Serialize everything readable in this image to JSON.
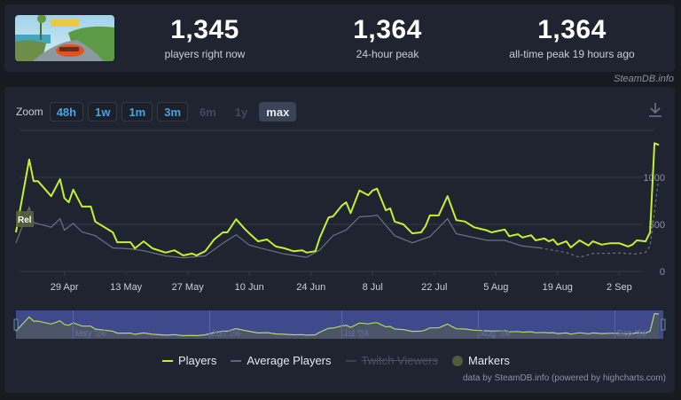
{
  "header": {
    "game_image_alt": "The Crew Motorfest",
    "stats": [
      {
        "value": "1,345",
        "label": "players right now"
      },
      {
        "value": "1,364",
        "label": "24-hour peak"
      },
      {
        "value": "1,364",
        "label": "all-time peak 19 hours ago"
      }
    ],
    "watermark": "SteamDB.info"
  },
  "toolbar": {
    "zoom_label": "Zoom",
    "zoom_buttons": [
      {
        "label": "48h",
        "state": "enabled"
      },
      {
        "label": "1w",
        "state": "enabled"
      },
      {
        "label": "1m",
        "state": "enabled"
      },
      {
        "label": "3m",
        "state": "enabled"
      },
      {
        "label": "6m",
        "state": "disabled"
      },
      {
        "label": "1y",
        "state": "disabled"
      },
      {
        "label": "max",
        "state": "active"
      }
    ],
    "download_icon": "download-icon"
  },
  "legend": {
    "items": [
      {
        "label": "Players",
        "color": "#c5f230",
        "visible": true
      },
      {
        "label": "Average Players",
        "color": "#5f6673",
        "visible": true
      },
      {
        "label": "Twitch Viewers",
        "color": "#3a414d",
        "visible": false
      },
      {
        "label": "Markers",
        "color": "#4f5b3a",
        "visible": true
      }
    ]
  },
  "credits": "data by SteamDB.info (powered by highcharts.com)",
  "colors": {
    "players": "#c5f230",
    "average": "#6b7280",
    "grid": "#333b49",
    "navigator_bg": "#3e4a8c",
    "navigator_fill": "#4c5468",
    "marker_bg": "#59633c"
  },
  "chart_data": {
    "type": "line",
    "title": "",
    "xlabel": "",
    "ylabel": "",
    "ylim": [
      0,
      1400
    ],
    "yticks": [
      0,
      500,
      1000
    ],
    "x_tick_labels": [
      "29 Apr",
      "13 May",
      "27 May",
      "10 Jun",
      "24 Jun",
      "8 Jul",
      "22 Jul",
      "5 Aug",
      "19 Aug",
      "2 Sep"
    ],
    "navigator_labels": [
      "May '24",
      "Jun '24",
      "Jul '24",
      "Aug '24",
      "Sep '24"
    ],
    "annotations": [
      {
        "label": "Rel",
        "x_date": "2024-04-18"
      }
    ],
    "legend_position": "bottom",
    "grid": true,
    "x_start": "2024-04-18",
    "x_end": "2024-09-12",
    "series": [
      {
        "name": "Players",
        "color": "#c5f230",
        "points": [
          [
            "2024-04-18",
            415
          ],
          [
            "2024-04-21",
            1190
          ],
          [
            "2024-04-22",
            960
          ],
          [
            "2024-04-23",
            960
          ],
          [
            "2024-04-26",
            800
          ],
          [
            "2024-04-28",
            980
          ],
          [
            "2024-04-29",
            780
          ],
          [
            "2024-04-30",
            735
          ],
          [
            "2024-05-01",
            870
          ],
          [
            "2024-05-03",
            690
          ],
          [
            "2024-05-05",
            690
          ],
          [
            "2024-05-06",
            530
          ],
          [
            "2024-05-10",
            415
          ],
          [
            "2024-05-11",
            310
          ],
          [
            "2024-05-14",
            310
          ],
          [
            "2024-05-15",
            245
          ],
          [
            "2024-05-17",
            320
          ],
          [
            "2024-05-19",
            245
          ],
          [
            "2024-05-22",
            200
          ],
          [
            "2024-05-24",
            225
          ],
          [
            "2024-05-26",
            170
          ],
          [
            "2024-05-28",
            190
          ],
          [
            "2024-05-29",
            170
          ],
          [
            "2024-05-31",
            215
          ],
          [
            "2024-06-02",
            340
          ],
          [
            "2024-06-04",
            415
          ],
          [
            "2024-06-05",
            415
          ],
          [
            "2024-06-07",
            555
          ],
          [
            "2024-06-09",
            450
          ],
          [
            "2024-06-10",
            405
          ],
          [
            "2024-06-12",
            320
          ],
          [
            "2024-06-14",
            340
          ],
          [
            "2024-06-16",
            265
          ],
          [
            "2024-06-18",
            245
          ],
          [
            "2024-06-20",
            215
          ],
          [
            "2024-06-22",
            225
          ],
          [
            "2024-06-23",
            200
          ],
          [
            "2024-06-25",
            215
          ],
          [
            "2024-06-26",
            360
          ],
          [
            "2024-06-28",
            575
          ],
          [
            "2024-06-29",
            585
          ],
          [
            "2024-07-01",
            700
          ],
          [
            "2024-07-02",
            735
          ],
          [
            "2024-07-03",
            620
          ],
          [
            "2024-07-05",
            860
          ],
          [
            "2024-07-07",
            810
          ],
          [
            "2024-07-08",
            860
          ],
          [
            "2024-07-09",
            880
          ],
          [
            "2024-07-11",
            650
          ],
          [
            "2024-07-12",
            670
          ],
          [
            "2024-07-13",
            530
          ],
          [
            "2024-07-15",
            500
          ],
          [
            "2024-07-17",
            405
          ],
          [
            "2024-07-19",
            415
          ],
          [
            "2024-07-20",
            480
          ],
          [
            "2024-07-21",
            595
          ],
          [
            "2024-07-23",
            595
          ],
          [
            "2024-07-25",
            800
          ],
          [
            "2024-07-27",
            545
          ],
          [
            "2024-07-29",
            530
          ],
          [
            "2024-07-31",
            470
          ],
          [
            "2024-08-03",
            435
          ],
          [
            "2024-08-04",
            415
          ],
          [
            "2024-08-05",
            425
          ],
          [
            "2024-08-07",
            445
          ],
          [
            "2024-08-08",
            375
          ],
          [
            "2024-08-10",
            395
          ],
          [
            "2024-08-11",
            360
          ],
          [
            "2024-08-13",
            385
          ],
          [
            "2024-08-14",
            330
          ],
          [
            "2024-08-16",
            350
          ],
          [
            "2024-08-17",
            320
          ],
          [
            "2024-08-18",
            340
          ],
          [
            "2024-08-19",
            285
          ],
          [
            "2024-08-21",
            320
          ],
          [
            "2024-08-22",
            255
          ],
          [
            "2024-08-24",
            330
          ],
          [
            "2024-08-26",
            275
          ],
          [
            "2024-08-27",
            320
          ],
          [
            "2024-08-29",
            285
          ],
          [
            "2024-08-31",
            300
          ],
          [
            "2024-09-02",
            300
          ],
          [
            "2024-09-04",
            265
          ],
          [
            "2024-09-05",
            285
          ],
          [
            "2024-09-06",
            330
          ],
          [
            "2024-09-08",
            320
          ],
          [
            "2024-09-09",
            415
          ],
          [
            "2024-09-10",
            1364
          ],
          [
            "2024-09-11",
            1345
          ]
        ]
      },
      {
        "name": "Average Players",
        "color": "#6b7280",
        "points": [
          [
            "2024-04-18",
            300
          ],
          [
            "2024-04-21",
            680
          ],
          [
            "2024-04-22",
            520
          ],
          [
            "2024-04-26",
            470
          ],
          [
            "2024-04-28",
            560
          ],
          [
            "2024-04-29",
            440
          ],
          [
            "2024-05-01",
            510
          ],
          [
            "2024-05-03",
            420
          ],
          [
            "2024-05-06",
            380
          ],
          [
            "2024-05-10",
            250
          ],
          [
            "2024-05-14",
            240
          ],
          [
            "2024-05-17",
            220
          ],
          [
            "2024-05-22",
            165
          ],
          [
            "2024-05-26",
            145
          ],
          [
            "2024-05-31",
            165
          ],
          [
            "2024-06-04",
            300
          ],
          [
            "2024-06-07",
            390
          ],
          [
            "2024-06-10",
            280
          ],
          [
            "2024-06-14",
            230
          ],
          [
            "2024-06-18",
            185
          ],
          [
            "2024-06-23",
            150
          ],
          [
            "2024-06-26",
            230
          ],
          [
            "2024-06-29",
            380
          ],
          [
            "2024-07-02",
            440
          ],
          [
            "2024-07-05",
            580
          ],
          [
            "2024-07-08",
            590
          ],
          [
            "2024-07-09",
            600
          ],
          [
            "2024-07-13",
            380
          ],
          [
            "2024-07-17",
            305
          ],
          [
            "2024-07-21",
            370
          ],
          [
            "2024-07-25",
            560
          ],
          [
            "2024-07-27",
            400
          ],
          [
            "2024-08-03",
            330
          ],
          [
            "2024-08-07",
            330
          ],
          [
            "2024-08-11",
            270
          ],
          [
            "2024-08-15",
            250
          ],
          [
            "2024-08-21",
            200
          ],
          [
            "2024-08-24",
            150
          ],
          [
            "2024-08-27",
            190
          ],
          [
            "2024-09-02",
            195
          ],
          [
            "2024-09-06",
            185
          ],
          [
            "2024-09-08",
            205
          ],
          [
            "2024-09-09",
            270
          ],
          [
            "2024-09-11",
            1000
          ]
        ]
      }
    ]
  }
}
